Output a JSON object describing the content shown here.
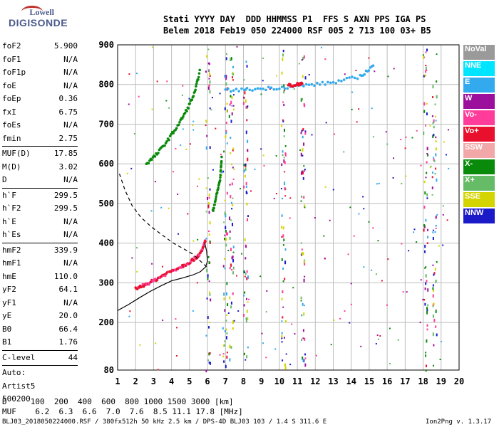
{
  "logo": {
    "line1": "Lowell",
    "line2": "DIGISONDE"
  },
  "header": {
    "row1": "Stati YYYY DAY  DDD HHMMSS P1  FFS S AXN PPS IGA PS",
    "row2": "Belem 2018 Feb19 050 224000 RSF 005 2 713 100 03+ B5"
  },
  "params": {
    "group1": [
      {
        "name": "foF2",
        "value": "5.900"
      },
      {
        "name": "foF1",
        "value": "N/A"
      },
      {
        "name": "foF1p",
        "value": "N/A"
      },
      {
        "name": "foE",
        "value": "N/A"
      },
      {
        "name": "foEp",
        "value": "0.36"
      },
      {
        "name": "fxI",
        "value": "6.75"
      },
      {
        "name": "foEs",
        "value": "N/A"
      },
      {
        "name": "fmin",
        "value": "2.75"
      }
    ],
    "group2": [
      {
        "name": "MUF(D)",
        "value": "17.85"
      },
      {
        "name": "M(D)",
        "value": "3.02"
      },
      {
        "name": "D",
        "value": "N/A"
      }
    ],
    "group3": [
      {
        "name": "h`F",
        "value": "299.5"
      },
      {
        "name": "h`F2",
        "value": "299.5"
      },
      {
        "name": "h`E",
        "value": "N/A"
      },
      {
        "name": "h`Es",
        "value": "N/A"
      }
    ],
    "group4": [
      {
        "name": "hmF2",
        "value": "339.9"
      },
      {
        "name": "hmF1",
        "value": "N/A"
      },
      {
        "name": "hmE",
        "value": "110.0"
      },
      {
        "name": "yF2",
        "value": "64.1"
      },
      {
        "name": "yF1",
        "value": "N/A"
      },
      {
        "name": "yE",
        "value": "20.0"
      },
      {
        "name": "B0",
        "value": "66.4"
      },
      {
        "name": "B1",
        "value": "1.76"
      }
    ],
    "group5": [
      {
        "name": "C-level",
        "value": "44"
      }
    ],
    "auto": [
      "Auto:",
      "Artist5",
      "500200"
    ]
  },
  "legend": [
    {
      "label": "NoVal",
      "color": "#9a9a9a"
    },
    {
      "label": "NNE",
      "color": "#00e5ff"
    },
    {
      "label": "E",
      "color": "#33aaee"
    },
    {
      "label": "W",
      "color": "#9c0f9c"
    },
    {
      "label": "Vo-",
      "color": "#ff3c9a"
    },
    {
      "label": "Vo+",
      "color": "#e8102c"
    },
    {
      "label": "SSW",
      "color": "#f2a8a8"
    },
    {
      "label": "X-",
      "color": "#0a8a0a"
    },
    {
      "label": "X+",
      "color": "#66bb66"
    },
    {
      "label": "SSE",
      "color": "#d4d400"
    },
    {
      "label": "NNW",
      "color": "#1a1ac8"
    }
  ],
  "chart_data": {
    "type": "scatter",
    "xlim": [
      1,
      20
    ],
    "ylim": [
      80,
      900
    ],
    "x_ticks": [
      "1",
      "2",
      "3",
      "4",
      "5",
      "6",
      "7",
      "8",
      "9",
      "10",
      "11",
      "12",
      "13",
      "14",
      "15",
      "16",
      "17",
      "18",
      "19",
      "20"
    ],
    "y_ticks": [
      "80",
      "200",
      "300",
      "400",
      "500",
      "600",
      "700",
      "800",
      "900"
    ],
    "grid": true,
    "lines": {
      "profile_solid": {
        "x": [
          1.0,
          1.6,
          2.2,
          2.8,
          3.4,
          4.0,
          4.6,
          5.2,
          5.6,
          5.9,
          6.0,
          5.95,
          5.85
        ],
        "y": [
          230,
          245,
          262,
          278,
          292,
          305,
          312,
          320,
          328,
          340,
          355,
          380,
          400
        ]
      },
      "profile_dashed": {
        "x": [
          1.1,
          1.4,
          1.8,
          2.3,
          2.9,
          3.5,
          4.1,
          4.7,
          5.2,
          5.6,
          5.85,
          5.95
        ],
        "y": [
          575,
          535,
          495,
          465,
          440,
          420,
          400,
          385,
          372,
          355,
          345,
          340
        ]
      }
    },
    "traces": [
      {
        "name": "o-trace",
        "color": "#e8102c",
        "x": [
          2.0,
          2.5,
          3.0,
          3.5,
          4.0,
          4.5,
          5.0,
          5.4,
          5.7,
          5.9
        ],
        "y": [
          285,
          295,
          305,
          318,
          330,
          340,
          352,
          365,
          380,
          410
        ]
      },
      {
        "name": "x-trace",
        "color": "#0a8a0a",
        "x": [
          2.6,
          3.2,
          3.8,
          4.4,
          4.9,
          5.3,
          5.6
        ],
        "y": [
          600,
          625,
          660,
          700,
          740,
          780,
          840
        ]
      },
      {
        "name": "oblique",
        "color": "#33aaee",
        "x": [
          7.0,
          8.5,
          10.0,
          11.5,
          13.0,
          14.5,
          15.3
        ],
        "y": [
          785,
          788,
          792,
          798,
          805,
          820,
          850
        ]
      },
      {
        "name": "spread",
        "color": "#e8102c",
        "x": [
          10.5,
          11.0,
          11.3
        ],
        "y": [
          798,
          800,
          802
        ]
      },
      {
        "name": "f-trace-2",
        "color": "#0a8a0a",
        "x": [
          6.3,
          6.5,
          6.7,
          6.8
        ],
        "y": [
          480,
          520,
          560,
          620
        ]
      }
    ]
  },
  "footer": {
    "d_row": "D     100  200  400  600  800 1000 1500 3000 [km]",
    "muf_row": "MUF    6.2  6.3  6.6  7.0  7.6  8.5 11.1 17.8 [MHz]",
    "info": "BLJ03_2018050224000.RSF / 380fx512h 50 kHz 2.5 km / DPS-4D BLJ03 103 / 1.4 S 311.6 E",
    "version": "Ion2Png v. 1.3.17"
  }
}
